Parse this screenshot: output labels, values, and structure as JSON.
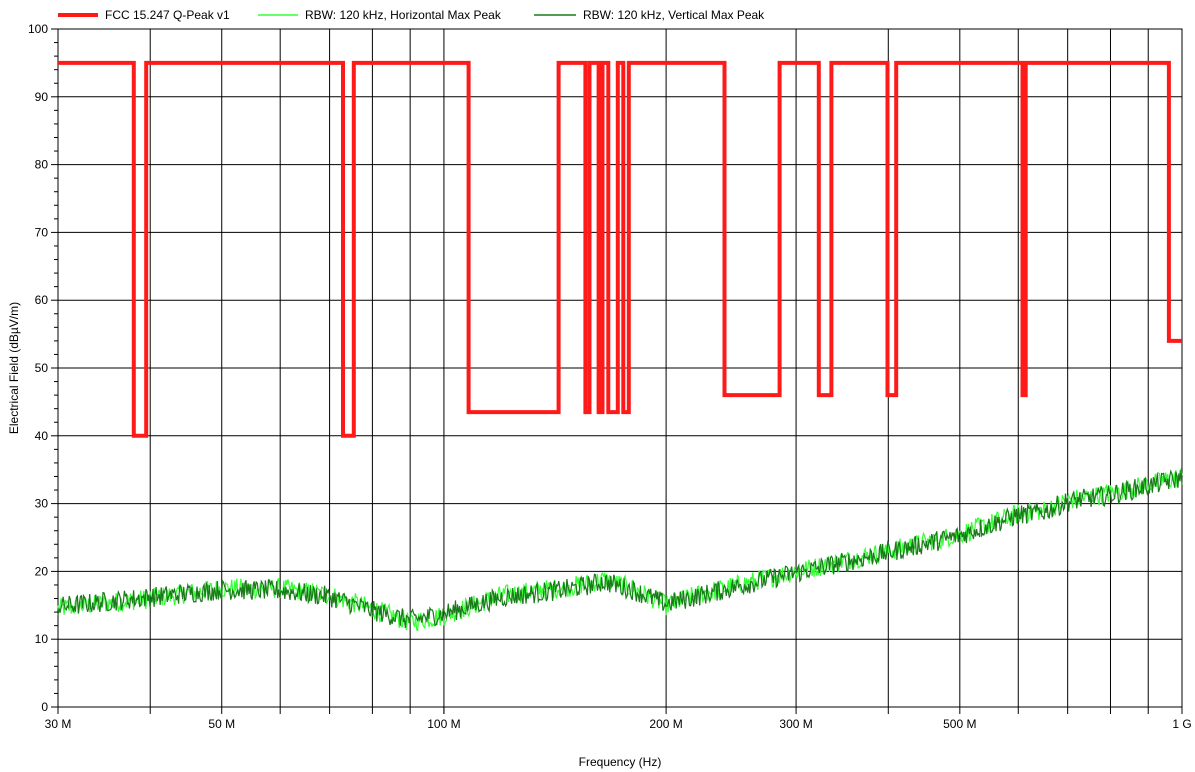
{
  "chart_data": {
    "type": "line",
    "title": "",
    "xlabel": "Frequency (Hz)",
    "ylabel": "Electrical Field (dBµV/m)",
    "x_scale": "log",
    "xlim": [
      30000000,
      1000000000
    ],
    "ylim": [
      0,
      100
    ],
    "grid": true,
    "legend_position": "top",
    "x_ticks": [
      {
        "value": 30000000,
        "label": "30 M"
      },
      {
        "value": 50000000,
        "label": "50 M"
      },
      {
        "value": 100000000,
        "label": "100 M"
      },
      {
        "value": 200000000,
        "label": "200 M"
      },
      {
        "value": 300000000,
        "label": "300 M"
      },
      {
        "value": 500000000,
        "label": "500 M"
      },
      {
        "value": 1000000000,
        "label": "1 G"
      }
    ],
    "y_ticks": [
      0,
      10,
      20,
      30,
      40,
      50,
      60,
      70,
      80,
      90,
      100
    ],
    "series": [
      {
        "name": "FCC 15.247 Q-Peak v1",
        "color": "#ff1a1a",
        "points": [
          [
            30000000,
            95
          ],
          [
            38000000,
            95
          ],
          [
            38000000,
            40
          ],
          [
            39500000,
            40
          ],
          [
            39500000,
            95
          ],
          [
            73000000,
            95
          ],
          [
            73000000,
            40
          ],
          [
            75500000,
            40
          ],
          [
            75500000,
            95
          ],
          [
            108000000,
            95
          ],
          [
            108000000,
            43.5
          ],
          [
            143000000,
            43.5
          ],
          [
            143000000,
            95
          ],
          [
            155500000,
            95
          ],
          [
            155500000,
            43.5
          ],
          [
            157500000,
            43.5
          ],
          [
            157500000,
            95
          ],
          [
            162000000,
            95
          ],
          [
            162000000,
            43.5
          ],
          [
            164000000,
            43.5
          ],
          [
            164000000,
            95
          ],
          [
            167000000,
            95
          ],
          [
            167000000,
            43.5
          ],
          [
            172000000,
            43.5
          ],
          [
            172000000,
            95
          ],
          [
            175000000,
            95
          ],
          [
            175000000,
            43.5
          ],
          [
            178000000,
            43.5
          ],
          [
            178000000,
            95
          ],
          [
            240000000,
            95
          ],
          [
            240000000,
            46
          ],
          [
            285000000,
            46
          ],
          [
            285000000,
            95
          ],
          [
            322000000,
            95
          ],
          [
            322000000,
            46
          ],
          [
            335000000,
            46
          ],
          [
            335000000,
            95
          ],
          [
            399000000,
            95
          ],
          [
            399000000,
            46
          ],
          [
            410000000,
            46
          ],
          [
            410000000,
            95
          ],
          [
            608000000,
            95
          ],
          [
            608000000,
            46
          ],
          [
            614000000,
            46
          ],
          [
            614000000,
            95
          ],
          [
            960000000,
            95
          ],
          [
            960000000,
            54
          ],
          [
            1000000000,
            54
          ]
        ]
      },
      {
        "name": "RBW: 120 kHz, Horizontal Max Peak",
        "color": "#33ff33",
        "profile": [
          [
            30000000,
            14.5
          ],
          [
            40000000,
            16
          ],
          [
            50000000,
            17.5
          ],
          [
            60000000,
            17.5
          ],
          [
            70000000,
            16.5
          ],
          [
            80000000,
            14.5
          ],
          [
            90000000,
            12.5
          ],
          [
            100000000,
            13.5
          ],
          [
            120000000,
            16.5
          ],
          [
            150000000,
            17.8
          ],
          [
            165000000,
            18.8
          ],
          [
            180000000,
            17.5
          ],
          [
            200000000,
            15
          ],
          [
            220000000,
            16.5
          ],
          [
            250000000,
            18
          ],
          [
            300000000,
            20
          ],
          [
            400000000,
            23
          ],
          [
            500000000,
            25.5
          ],
          [
            600000000,
            28.5
          ],
          [
            650000000,
            29
          ],
          [
            700000000,
            30.5
          ],
          [
            800000000,
            31.5
          ],
          [
            1000000000,
            34
          ]
        ]
      },
      {
        "name": "RBW: 120 kHz, Vertical Max Peak",
        "color": "#1a7a1a",
        "profile": [
          [
            30000000,
            14.8
          ],
          [
            40000000,
            16.2
          ],
          [
            50000000,
            17.3
          ],
          [
            60000000,
            17.2
          ],
          [
            70000000,
            16.3
          ],
          [
            80000000,
            14.2
          ],
          [
            90000000,
            12.8
          ],
          [
            100000000,
            13.8
          ],
          [
            120000000,
            16.2
          ],
          [
            150000000,
            17.5
          ],
          [
            165000000,
            18.5
          ],
          [
            180000000,
            17.3
          ],
          [
            200000000,
            15.2
          ],
          [
            220000000,
            16.3
          ],
          [
            250000000,
            17.8
          ],
          [
            300000000,
            19.8
          ],
          [
            400000000,
            22.8
          ],
          [
            500000000,
            25.3
          ],
          [
            600000000,
            28.3
          ],
          [
            650000000,
            28.8
          ],
          [
            700000000,
            30.3
          ],
          [
            800000000,
            31.3
          ],
          [
            1000000000,
            33.8
          ]
        ]
      }
    ]
  }
}
